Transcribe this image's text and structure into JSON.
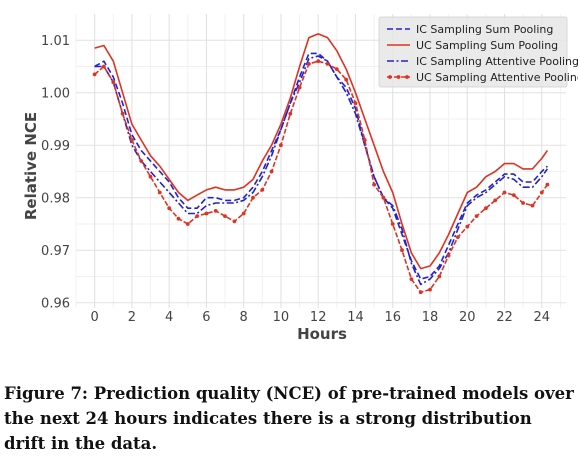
{
  "caption": "Figure 7: Prediction quality (NCE) of pre-trained models over the next 24 hours indicates there is a strong distribution drift in the data.",
  "chart_data": {
    "type": "line",
    "xlabel": "Hours",
    "ylabel": "Relative NCE",
    "xlim": [
      -1.0,
      25.3
    ],
    "ylim": [
      0.959,
      1.015
    ],
    "xticks": [
      0,
      2,
      4,
      6,
      8,
      10,
      12,
      14,
      16,
      18,
      20,
      22,
      24
    ],
    "yticks": [
      0.96,
      0.97,
      0.98,
      0.99,
      1.0,
      1.01
    ],
    "ytick_labels": [
      "0.96",
      "0.97",
      "0.98",
      "0.99",
      "1.00",
      "1.01"
    ],
    "grid": true,
    "legend_position": "top-right",
    "series": [
      {
        "name": "IC Sampling Sum Pooling",
        "color": "#2222cc",
        "style": "dashed",
        "x": [
          0,
          0.5,
          1,
          1.5,
          2,
          2.5,
          3,
          3.5,
          4,
          4.5,
          5,
          5.5,
          6,
          6.5,
          7,
          7.5,
          8,
          8.5,
          9,
          9.5,
          10,
          10.5,
          11,
          11.5,
          12,
          12.5,
          13,
          13.5,
          14,
          14.5,
          15,
          15.5,
          16,
          16.5,
          17,
          17.5,
          18,
          18.5,
          19,
          19.5,
          20,
          20.5,
          21,
          21.5,
          22,
          22.5,
          23,
          23.5,
          24,
          24.3
        ],
        "y": [
          1.005,
          1.006,
          1.003,
          0.998,
          0.992,
          0.989,
          0.987,
          0.985,
          0.983,
          0.98,
          0.978,
          0.978,
          0.98,
          0.98,
          0.9795,
          0.9795,
          0.98,
          0.982,
          0.985,
          0.989,
          0.993,
          0.998,
          1.003,
          1.0075,
          1.0075,
          1.006,
          1.003,
          1.001,
          0.997,
          0.99,
          0.984,
          0.98,
          0.978,
          0.973,
          0.968,
          0.9645,
          0.965,
          0.967,
          0.971,
          0.975,
          0.979,
          0.9805,
          0.9815,
          0.983,
          0.9845,
          0.9845,
          0.983,
          0.983,
          0.985,
          0.986
        ]
      },
      {
        "name": "UC Sampling Sum Pooling",
        "color": "#dd3322",
        "style": "solid",
        "x": [
          0,
          0.5,
          1,
          1.5,
          2,
          2.5,
          3,
          3.5,
          4,
          4.5,
          5,
          5.5,
          6,
          6.5,
          7,
          7.5,
          8,
          8.5,
          9,
          9.5,
          10,
          10.5,
          11,
          11.5,
          12,
          12.5,
          13,
          13.5,
          14,
          14.5,
          15,
          15.5,
          16,
          16.5,
          17,
          17.5,
          18,
          18.5,
          19,
          19.5,
          20,
          20.5,
          21,
          21.5,
          22,
          22.5,
          23,
          23.5,
          24,
          24.3
        ],
        "y": [
          1.0085,
          1.009,
          1.006,
          1.0,
          0.994,
          0.991,
          0.988,
          0.986,
          0.9835,
          0.981,
          0.9795,
          0.9805,
          0.9815,
          0.982,
          0.9815,
          0.9815,
          0.982,
          0.9835,
          0.987,
          0.99,
          0.994,
          0.999,
          1.005,
          1.0105,
          1.0112,
          1.0105,
          1.008,
          1.0045,
          1.0,
          0.995,
          0.99,
          0.985,
          0.981,
          0.975,
          0.9695,
          0.9665,
          0.967,
          0.9695,
          0.973,
          0.977,
          0.981,
          0.982,
          0.984,
          0.985,
          0.9865,
          0.9865,
          0.9855,
          0.9855,
          0.9875,
          0.989
        ]
      },
      {
        "name": "IC Sampling Attentive Pooling",
        "color": "#2222cc",
        "style": "dashdot",
        "x": [
          0,
          0.5,
          1,
          1.5,
          2,
          2.5,
          3,
          3.5,
          4,
          4.5,
          5,
          5.5,
          6,
          6.5,
          7,
          7.5,
          8,
          8.5,
          9,
          9.5,
          10,
          10.5,
          11,
          11.5,
          12,
          12.5,
          13,
          13.5,
          14,
          14.5,
          15,
          15.5,
          16,
          16.5,
          17,
          17.5,
          18,
          18.5,
          19,
          19.5,
          20,
          20.5,
          21,
          21.5,
          22,
          22.5,
          23,
          23.5,
          24,
          24.3
        ],
        "y": [
          1.005,
          1.005,
          1.002,
          0.996,
          0.99,
          0.987,
          0.985,
          0.983,
          0.981,
          0.979,
          0.977,
          0.977,
          0.9785,
          0.979,
          0.979,
          0.979,
          0.9795,
          0.981,
          0.984,
          0.988,
          0.993,
          0.998,
          1.002,
          1.0065,
          1.007,
          1.006,
          1.003,
          1.0,
          0.996,
          0.99,
          0.984,
          0.98,
          0.9785,
          0.974,
          0.9675,
          0.9635,
          0.9645,
          0.9665,
          0.9695,
          0.974,
          0.9785,
          0.98,
          0.981,
          0.9825,
          0.984,
          0.9835,
          0.982,
          0.982,
          0.984,
          0.9855
        ]
      },
      {
        "name": "UC Sampling Attentive Pooling",
        "color": "#dd3322",
        "style": "dashed-markers",
        "x": [
          0,
          0.5,
          1,
          1.5,
          2,
          2.5,
          3,
          3.5,
          4,
          4.5,
          5,
          5.5,
          6,
          6.5,
          7,
          7.5,
          8,
          8.5,
          9,
          9.5,
          10,
          10.5,
          11,
          11.5,
          12,
          12.5,
          13,
          13.5,
          14,
          14.5,
          15,
          15.5,
          16,
          16.5,
          17,
          17.5,
          18,
          18.5,
          19,
          19.5,
          20,
          20.5,
          21,
          21.5,
          22,
          22.5,
          23,
          23.5,
          24,
          24.3
        ],
        "y": [
          1.0035,
          1.005,
          1.002,
          0.996,
          0.991,
          0.987,
          0.984,
          0.981,
          0.978,
          0.976,
          0.975,
          0.9765,
          0.977,
          0.9775,
          0.9765,
          0.9755,
          0.977,
          0.98,
          0.9815,
          0.985,
          0.99,
          0.996,
          1.001,
          1.0055,
          1.006,
          1.0055,
          1.0045,
          1.0025,
          0.998,
          0.991,
          0.9825,
          0.98,
          0.975,
          0.97,
          0.9645,
          0.962,
          0.9625,
          0.965,
          0.969,
          0.9725,
          0.9745,
          0.9765,
          0.978,
          0.9795,
          0.981,
          0.9805,
          0.979,
          0.9785,
          0.981,
          0.9825
        ]
      }
    ]
  }
}
